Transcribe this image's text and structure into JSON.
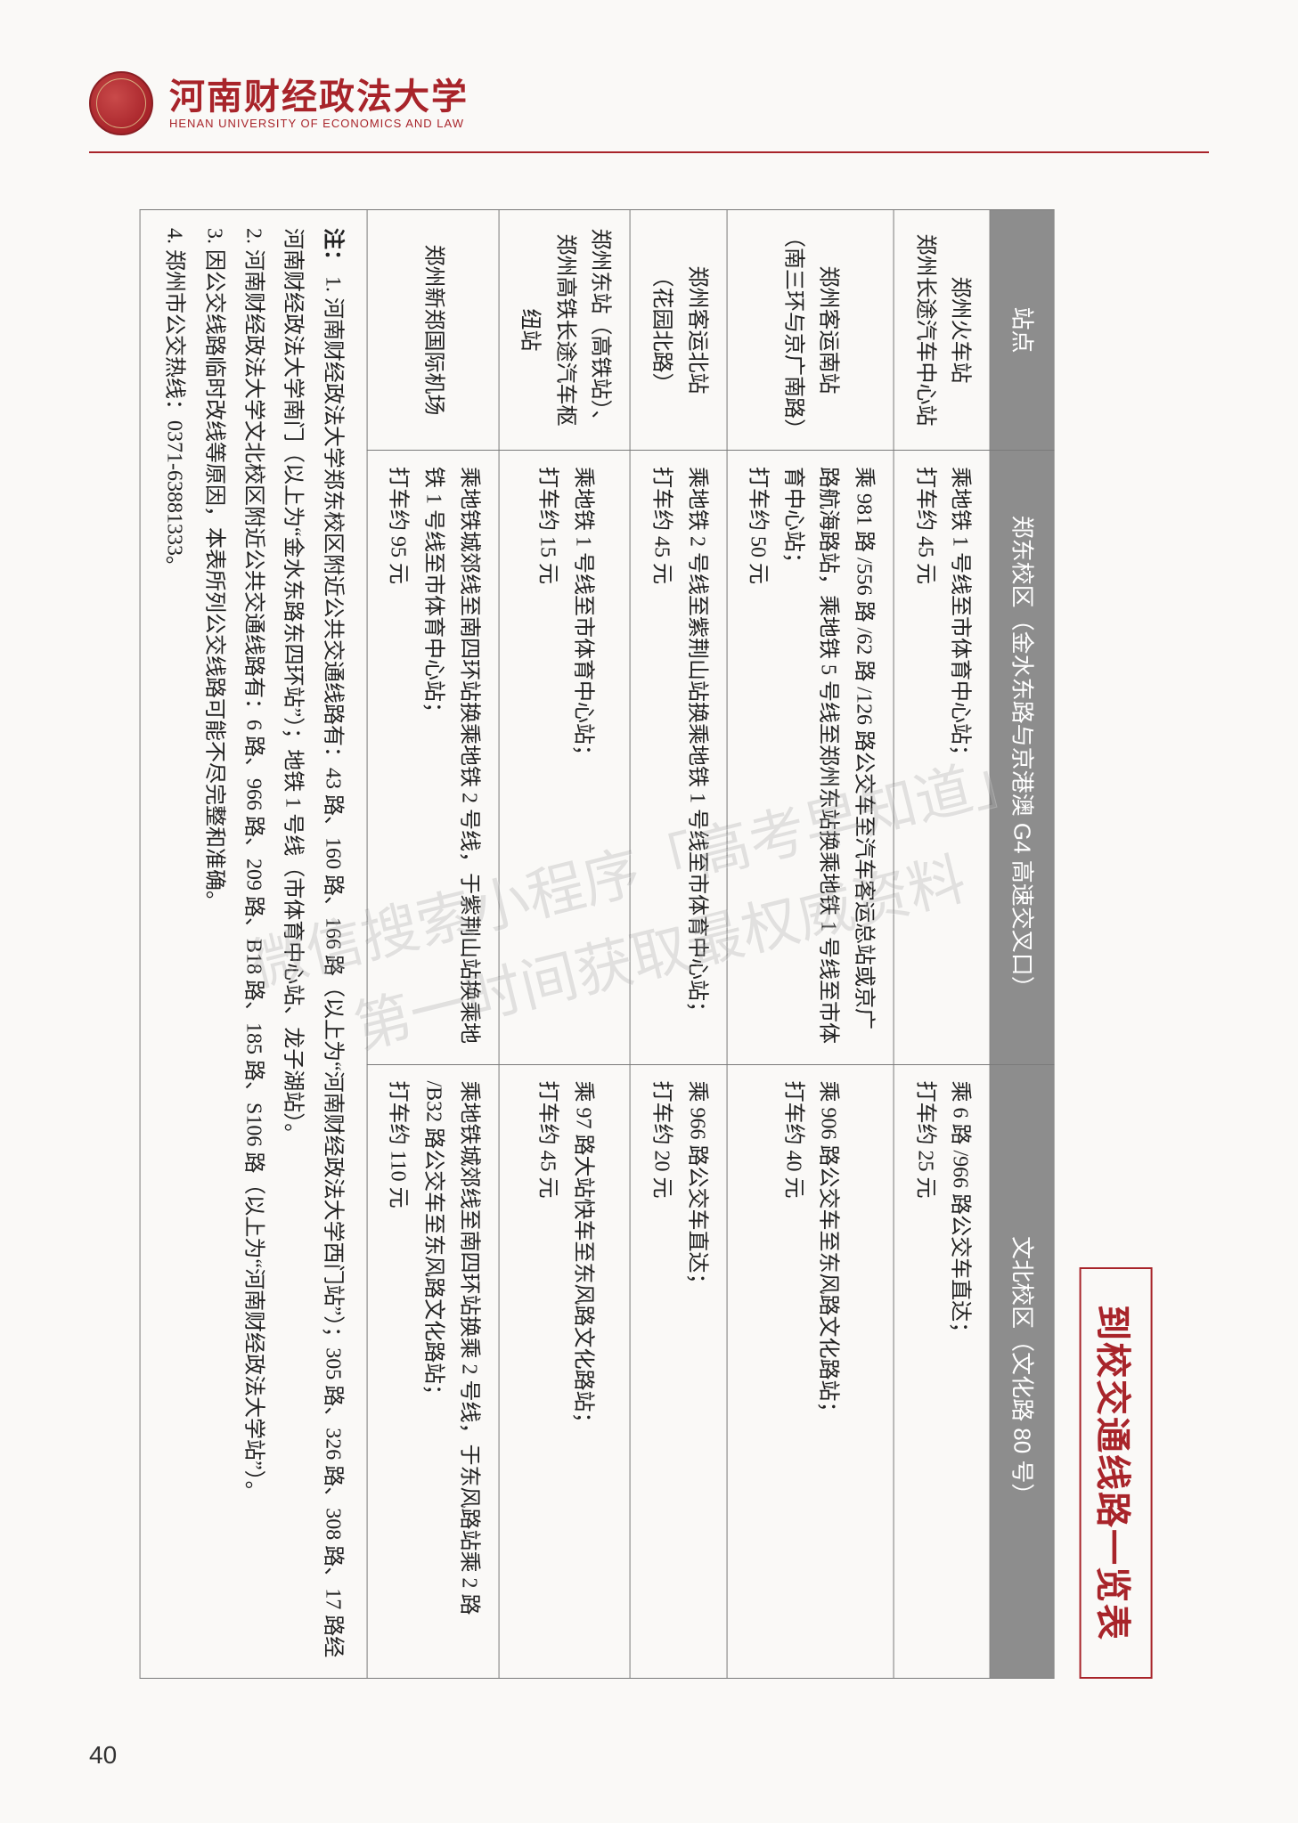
{
  "header": {
    "cn_name": "河南财经政法大学",
    "en_name": "HENAN UNIVERSITY OF ECONOMICS AND LAW"
  },
  "title": "到校交通线路一览表",
  "table": {
    "columns": {
      "station": "站点",
      "east": "郑东校区（金水东路与京港澳 G4 高速交叉口）",
      "wenbei": "文北校区（文化路 80 号）"
    },
    "rows": [
      {
        "station": "郑州火车站\n郑州长途汽车中心站",
        "east": "乘地铁 1 号线至市体育中心站；\n打车约 45 元",
        "wenbei": "乘 6 路 /966 路公交车直达；\n打车约 25 元"
      },
      {
        "station": "郑州客运南站\n（南三环与京广南路）",
        "east": "乘 981 路 /556 路 /62 路 /126 路公交车至汽车客运总站或京广路航海路站，乘地铁 5 号线至郑州东站换乘地铁 1 号线至市体育中心站；\n打车约 50 元",
        "wenbei": "乘 906 路公交车至东风路文化路站；\n打车约 40 元"
      },
      {
        "station": "郑州客运北站\n（花园北路）",
        "east": "乘地铁 2 号线至紫荆山站换乘地铁 1 号线至市体育中心站；\n打车约 45 元",
        "wenbei": "乘 966 路公交车直达；\n打车约 20 元"
      },
      {
        "station": "郑州东站（高铁站）、\n郑州高铁长途汽车枢纽站",
        "east": "乘地铁 1 号线至市体育中心站；\n打车约 15 元",
        "wenbei": "乘 97 路大站快车至东风路文化路站；\n打车约 45 元"
      },
      {
        "station": "郑州新郑国际机场",
        "east": "乘地铁城郊线至南四环站换乘地铁 2 号线，于紫荆山站换乘地铁 1 号线至市体育中心站；\n打车约 95 元",
        "wenbei": "乘地铁城郊线至南四环站换乘 2 号线，于东风路站乘 2 路 /B32 路公交车至东风路文化路站；\n打车约 110 元"
      }
    ]
  },
  "notes": {
    "label": "注：",
    "items": [
      "1. 河南财经政法大学郑东校区附近公共交通线路有：43 路、160 路、166 路（以上为“河南财经政法大学西门站”）；305 路、326 路、308 路、17 路经河南财经政法大学南门（以上为“金水东路东四环站”）；地铁 1 号线（市体育中心站、龙子湖站）。",
      "2. 河南财经政法大学文北校区附近公共交通线路有：6 路、966 路、209 路、B18 路、185 路、S106 路（以上为“河南财经政法大学站”）。",
      "3. 因公交线路临时改线等原因，本表所列公交线路可能不尽完整和准确。",
      "4. 郑州市公交热线：0371-63881333。"
    ]
  },
  "watermark": {
    "line1": "微信搜索小程序「高考早知道」",
    "line2": "第一时间获取最权威资料"
  },
  "page_number": "40",
  "colors": {
    "brand": "#a8242a",
    "th_bg": "#8d8d8d",
    "border": "#7a7a7a",
    "page_bg": "#faf9f7"
  }
}
